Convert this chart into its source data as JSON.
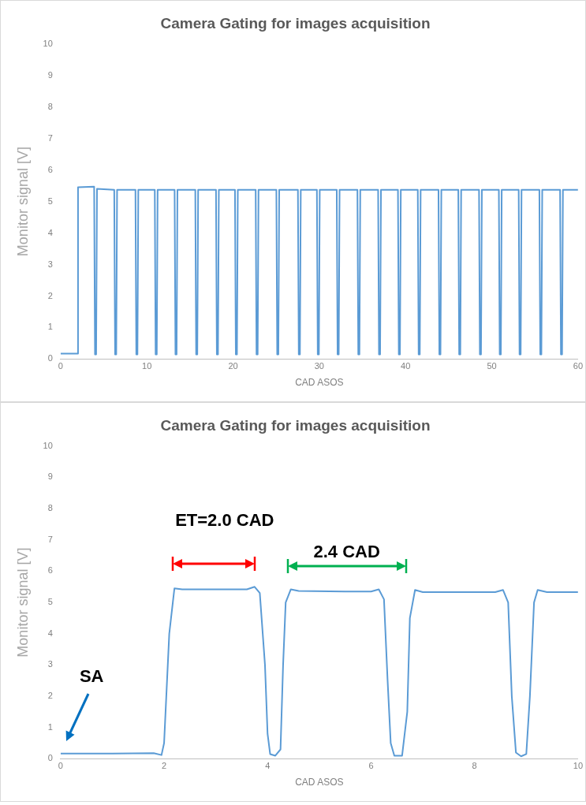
{
  "chart_data": [
    {
      "type": "line",
      "title": "Camera Gating for images acquisition",
      "xlabel": "CAD ASOS",
      "ylabel": "Monitor signal [V]",
      "xlim": [
        0,
        60
      ],
      "xticks": [
        0,
        10,
        20,
        30,
        40,
        50,
        60
      ],
      "ylim": [
        0,
        10
      ],
      "yticks": [
        0,
        1,
        2,
        3,
        4,
        5,
        6,
        7,
        8,
        9,
        10
      ],
      "grid": false,
      "marker": "none",
      "line_style": "solid",
      "series": [
        {
          "color": "#5b9bd5",
          "x": [
            0,
            1.95,
            2.02,
            3.85,
            3.89,
            3.99,
            4.12,
            4.22,
            6.22,
            6.32,
            6.45,
            6.55,
            8.68,
            8.78,
            8.91,
            9.01,
            10.92,
            11.02,
            11.15,
            11.25,
            13.22,
            13.32,
            13.45,
            13.55,
            15.62,
            15.72,
            15.85,
            15.95,
            18.02,
            18.12,
            18.25,
            18.35,
            20.22,
            20.32,
            20.45,
            20.55,
            22.62,
            22.72,
            22.85,
            22.95,
            25.02,
            25.12,
            25.25,
            25.35,
            27.52,
            27.62,
            27.75,
            27.85,
            29.72,
            29.82,
            29.95,
            30.05,
            32.02,
            32.12,
            32.25,
            32.35,
            34.42,
            34.52,
            34.65,
            34.75,
            36.82,
            36.92,
            37.05,
            37.15,
            39.12,
            39.22,
            39.35,
            39.45,
            41.42,
            41.52,
            41.65,
            41.75,
            43.82,
            43.92,
            44.05,
            44.15,
            46.12,
            46.22,
            46.35,
            46.45,
            48.52,
            48.62,
            48.75,
            48.85,
            50.82,
            50.92,
            51.05,
            51.15,
            53.12,
            53.22,
            53.35,
            53.45,
            55.52,
            55.62,
            55.75,
            55.85,
            57.92,
            58.02,
            58.15,
            58.25,
            60
          ],
          "values": [
            0.17,
            0.17,
            5.45,
            5.47,
            5.47,
            0.15,
            0.15,
            5.4,
            5.37,
            0.15,
            0.15,
            5.37,
            5.37,
            0.15,
            0.15,
            5.37,
            5.37,
            0.15,
            0.15,
            5.37,
            5.37,
            0.15,
            0.15,
            5.37,
            5.37,
            0.15,
            0.15,
            5.37,
            5.37,
            0.15,
            0.15,
            5.37,
            5.37,
            0.15,
            0.15,
            5.37,
            5.37,
            0.15,
            0.15,
            5.37,
            5.37,
            0.15,
            0.15,
            5.37,
            5.37,
            0.15,
            0.15,
            5.37,
            5.37,
            0.15,
            0.15,
            5.37,
            5.37,
            0.15,
            0.15,
            5.37,
            5.37,
            0.15,
            0.15,
            5.37,
            5.37,
            0.15,
            0.15,
            5.37,
            5.37,
            0.15,
            0.15,
            5.37,
            5.37,
            0.15,
            0.15,
            5.37,
            5.37,
            0.15,
            0.15,
            5.37,
            5.37,
            0.15,
            0.15,
            5.37,
            5.37,
            0.15,
            0.15,
            5.37,
            5.37,
            0.15,
            0.15,
            5.37,
            5.37,
            0.15,
            0.15,
            5.37,
            5.37,
            0.15,
            0.15,
            5.37,
            5.37,
            0.15,
            0.15,
            5.37,
            5.37
          ]
        }
      ]
    },
    {
      "type": "line",
      "title": "Camera Gating for images acquisition",
      "xlabel": "CAD ASOS",
      "ylabel": "Monitor signal [V]",
      "xlim": [
        0,
        10
      ],
      "xticks": [
        0,
        2,
        4,
        6,
        8,
        10
      ],
      "ylim": [
        0,
        10
      ],
      "yticks": [
        0,
        1,
        2,
        3,
        4,
        5,
        6,
        7,
        8,
        9,
        10
      ],
      "grid": false,
      "marker": "none",
      "line_style": "solid",
      "annotations": [
        "ET=2.0 CAD",
        "2.4 CAD",
        "SA"
      ],
      "series": [
        {
          "color": "#5b9bd5",
          "x": [
            0,
            1,
            1.8,
            1.95,
            2,
            2.1,
            2.2,
            2.35,
            3,
            3.6,
            3.75,
            3.85,
            3.95,
            4,
            4.05,
            4.15,
            4.25,
            4.3,
            4.35,
            4.45,
            4.6,
            5.5,
            6,
            6.15,
            6.25,
            6.32,
            6.38,
            6.45,
            6.6,
            6.7,
            6.75,
            6.85,
            7,
            8,
            8.4,
            8.55,
            8.65,
            8.72,
            8.8,
            8.9,
            9,
            9.07,
            9.15,
            9.22,
            9.4,
            10
          ],
          "values": [
            0.17,
            0.17,
            0.18,
            0.12,
            0.5,
            4,
            5.45,
            5.42,
            5.42,
            5.42,
            5.5,
            5.3,
            3,
            0.8,
            0.15,
            0.1,
            0.3,
            3,
            5,
            5.42,
            5.37,
            5.35,
            5.35,
            5.42,
            5.1,
            2.5,
            0.5,
            0.1,
            0.1,
            1.5,
            4.5,
            5.4,
            5.33,
            5.33,
            5.33,
            5.4,
            5,
            2,
            0.2,
            0.08,
            0.15,
            2,
            5,
            5.4,
            5.33,
            5.33
          ]
        }
      ]
    }
  ]
}
